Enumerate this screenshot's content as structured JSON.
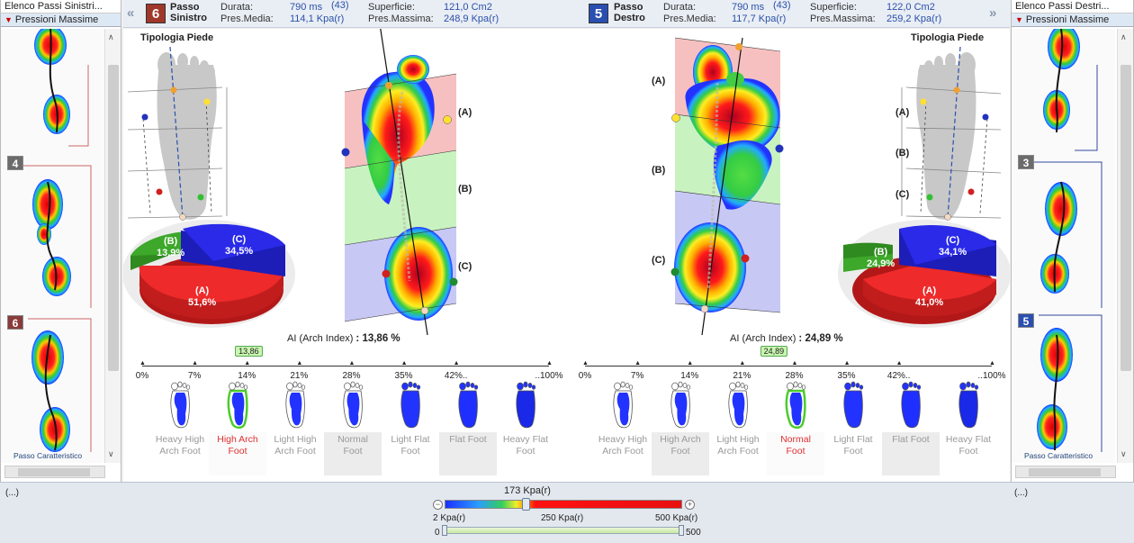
{
  "left_panel": {
    "title": "Elenco Passi Sinistri...",
    "subtitle": "Pressioni Massime",
    "badges": [
      "4",
      "6"
    ],
    "footer": "Passo Caratteristico"
  },
  "right_panel": {
    "title": "Elenco Passi Destri...",
    "subtitle": "Pressioni Massime",
    "badges": [
      "3",
      "5"
    ],
    "footer": "Passo Caratteristico"
  },
  "left_header": {
    "badge": "6",
    "title_line1": "Passo",
    "title_line2": "Sinistro",
    "durata_label": "Durata:",
    "durata_value": "790 ms",
    "durata_count": "(43)",
    "presmedia_label": "Pres.Media:",
    "presmedia_value": "114,1 Kpa(r)",
    "superficie_label": "Superficie:",
    "superficie_value": "121,0 Cm2",
    "presmassima_label": "Pres.Massima:",
    "presmassima_value": "248,9 Kpa(r)"
  },
  "right_header": {
    "badge": "5",
    "title_line1": "Passo",
    "title_line2": "Destro",
    "durata_label": "Durata:",
    "durata_value": "790 ms",
    "durata_count": "(43)",
    "presmedia_label": "Pres.Media:",
    "presmedia_value": "117,7 Kpa(r)",
    "superficie_label": "Superficie:",
    "superficie_value": "122,0 Cm2",
    "presmassima_label": "Pres.Massima:",
    "presmassima_value": "259,2 Kpa(r)"
  },
  "left_analysis": {
    "tipologia": "Tipologia Piede",
    "pie": {
      "A": {
        "label": "(A)",
        "value": "51,6%"
      },
      "B": {
        "label": "(B)",
        "value": "13,9%"
      },
      "C": {
        "label": "(C)",
        "value": "34,5%"
      }
    },
    "zones": [
      "(A)",
      "(B)",
      "(C)"
    ],
    "ai_label": "AI (Arch Index)",
    "ai_value": ": 13,86 %",
    "marker": "13,86",
    "marker_fraction": 0.1386,
    "selected": "High Arch Foot"
  },
  "right_analysis": {
    "tipologia": "Tipologia Piede",
    "pie": {
      "A": {
        "label": "(A)",
        "value": "41,0%"
      },
      "B": {
        "label": "(B)",
        "value": "24,9%"
      },
      "C": {
        "label": "(C)",
        "value": "34,1%"
      }
    },
    "zones": [
      "(A)",
      "(B)",
      "(C)"
    ],
    "ai_label": "AI (Arch Index)",
    "ai_value": ": 24,89 %",
    "marker": "24,89",
    "marker_fraction": 0.2489,
    "selected": "Normal Foot"
  },
  "scale_labels": [
    "0%",
    "7%",
    "14%",
    "21%",
    "28%",
    "35%",
    "42%..",
    "..100%"
  ],
  "foot_types_left": [
    {
      "l1": "Heavy High",
      "l2": "Arch Foot"
    },
    {
      "l1": "High Arch",
      "l2": "Foot"
    },
    {
      "l1": "Light High",
      "l2": "Arch Foot"
    },
    {
      "l1": "Normal",
      "l2": "Foot"
    },
    {
      "l1": "Light Flat",
      "l2": "Foot"
    },
    {
      "l1": "Flat Foot",
      "l2": ""
    },
    {
      "l1": "Heavy Flat",
      "l2": "Foot"
    }
  ],
  "foot_types_right": [
    {
      "l1": "Heavy High",
      "l2": "Arch Foot"
    },
    {
      "l1": "High Arch",
      "l2": "Foot"
    },
    {
      "l1": "Light High",
      "l2": "Arch Foot"
    },
    {
      "l1": "Normal",
      "l2": "Foot"
    },
    {
      "l1": "Light Flat",
      "l2": "Foot"
    },
    {
      "l1": "Flat Foot",
      "l2": ""
    },
    {
      "l1": "Heavy Flat",
      "l2": "Foot"
    }
  ],
  "bottom": {
    "ellipsis_left": "(...)",
    "ellipsis_right": "(...)",
    "gauge_value": "173 Kpa(r)",
    "gauge_fraction": 0.346,
    "min_label": "2 Kpa(r)",
    "mid_label": "250 Kpa(r)",
    "max_label": "500 Kpa(r)",
    "range_min": "0",
    "range_max": "500"
  },
  "colors": {
    "accent": "#2b4fa8",
    "left_badge": "#a0382a",
    "right_badge": "#2a4fb0",
    "pie_red": "#ee2a2a",
    "pie_blue": "#2a2ae8",
    "pie_green": "#2f9a20"
  }
}
